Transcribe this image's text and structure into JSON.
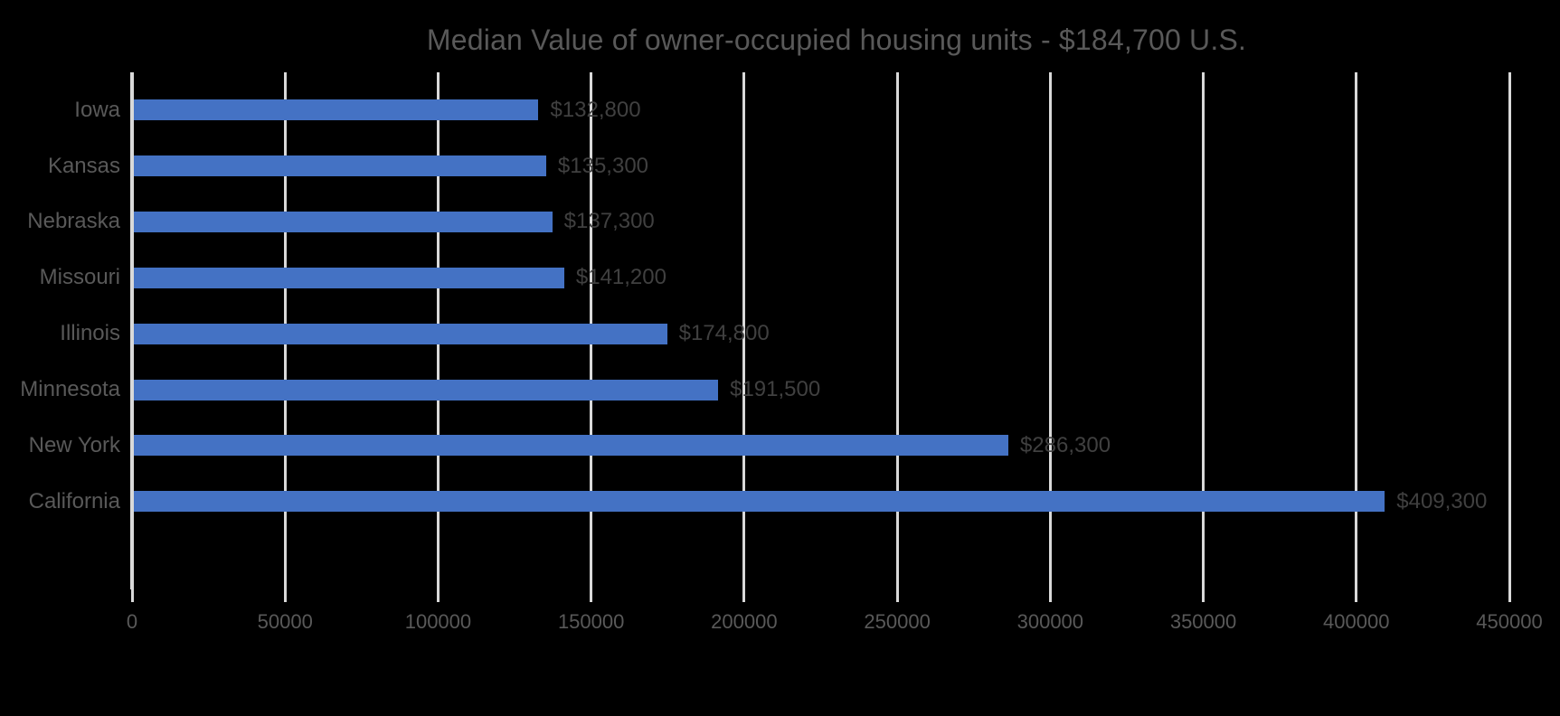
{
  "chart_data": {
    "type": "bar",
    "orientation": "horizontal",
    "title": "Median Value of owner-occupied housing units - $184,700 U.S.",
    "categories": [
      "Iowa",
      "Kansas",
      "Nebraska",
      "Missouri",
      "Illinois",
      "Minnesota",
      "New York",
      "California"
    ],
    "values": [
      132800,
      135300,
      137300,
      141200,
      174800,
      191500,
      286300,
      409300
    ],
    "value_labels": [
      "$132,800",
      "$135,300",
      "$137,300",
      "$141,200",
      "$174,800",
      "$191,500",
      "$286,300",
      "$409,300"
    ],
    "xlim": [
      0,
      450000
    ],
    "x_tick_interval": 50000,
    "x_tick_labels": [
      "0",
      "50000",
      "100000",
      "150000",
      "200000",
      "250000",
      "300000",
      "350000",
      "400000",
      "450000"
    ],
    "grid": true,
    "legend": "none",
    "colors": {
      "bar": "#4472C4",
      "title": "#595959",
      "category_label": "#595959",
      "value_label": "#404040",
      "tick_label": "#595959",
      "gridline": "#D9D9D9",
      "axis_line": "#D9D9D9",
      "background": "#000000"
    }
  }
}
